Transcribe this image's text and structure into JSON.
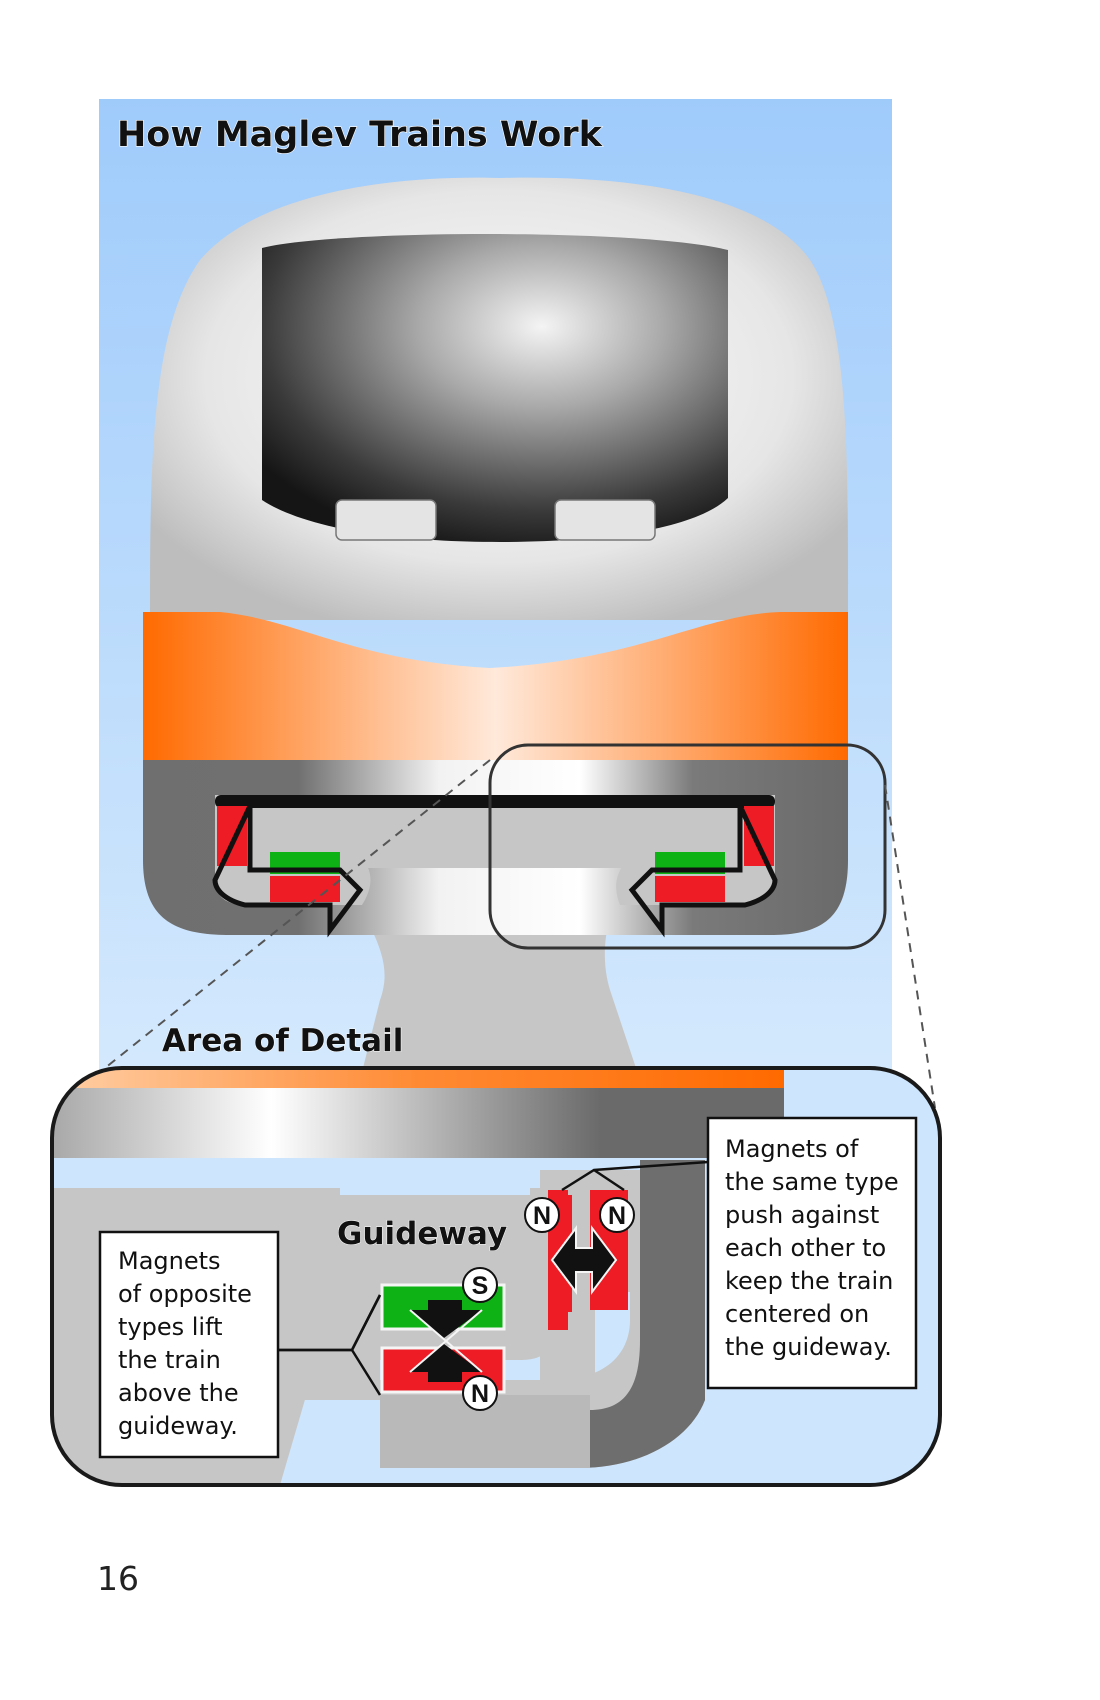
{
  "page": {
    "title": "How Maglev Trains Work",
    "page_number": "16"
  },
  "detail": {
    "area_label": "Area of Detail",
    "guideway_label": "Guideway"
  },
  "callouts": {
    "opposite": [
      "Magnets",
      "of opposite",
      "types lift",
      "the train",
      "above the",
      "guideway."
    ],
    "same": [
      "Magnets of",
      "the same type",
      "push against",
      "each other to",
      "keep the train",
      "centered on",
      "the guideway."
    ]
  },
  "poles": {
    "lift_top": "S",
    "lift_bottom": "N",
    "guide_left": "N",
    "guide_right": "N"
  },
  "colors": {
    "sky": "#a9d1fb",
    "train_orange": "#ff6a00",
    "magnet_red": "#ee1c24",
    "magnet_green": "#0fb215",
    "guideway_gray": "#c6c6c6"
  }
}
